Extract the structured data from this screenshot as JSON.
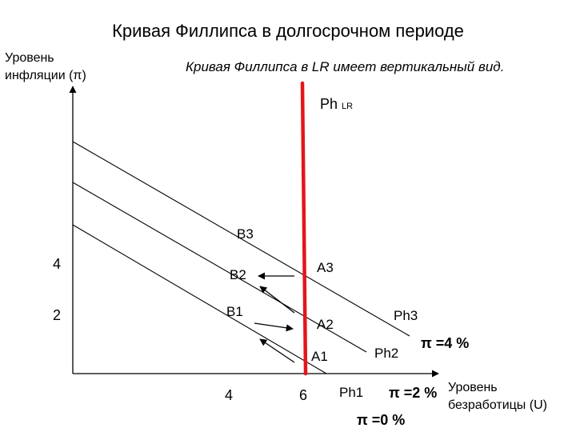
{
  "title": "Кривая Филлипса в долгосрочном периоде",
  "subtitle": "Кривая Филлипса в LR имеет вертикальный вид.",
  "y_axis_label": "Уровень инфляции (π)",
  "x_axis_label": "Уровень безработицы (U)",
  "lr_curve_label": {
    "main": "Ph",
    "sub": "LR"
  },
  "y_ticks": [
    "4",
    "2"
  ],
  "x_ticks": [
    "4",
    "6"
  ],
  "points": {
    "A1": "A1",
    "A2": "A2",
    "A3": "A3",
    "B1": "B1",
    "B2": "B2",
    "B3": "B3"
  },
  "short_run_curves": [
    {
      "name": "Ph1",
      "expected_inflation": "π =0 %"
    },
    {
      "name": "Ph2",
      "expected_inflation": "π =2 %"
    },
    {
      "name": "Ph3",
      "expected_inflation": "π =4 %"
    }
  ],
  "colors": {
    "lr_curve": "#e3161b",
    "lines": "#000000"
  }
}
